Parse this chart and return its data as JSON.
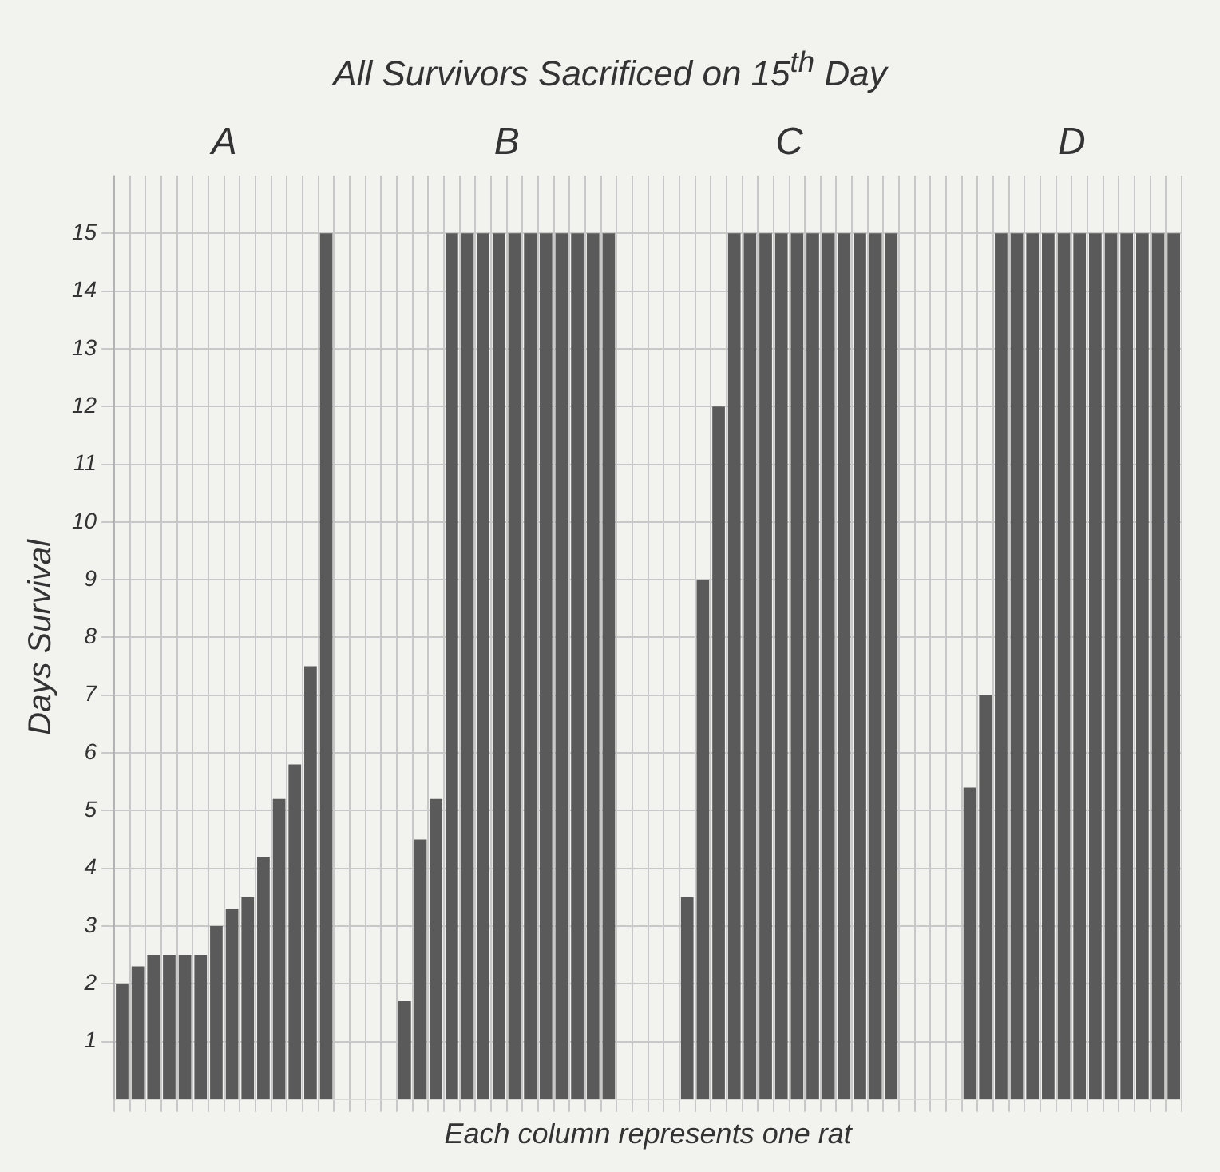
{
  "chart_data": {
    "type": "bar",
    "title": "All Survivors Sacrificed on 15$^{th}$ Day",
    "xlabel": "Each column represents one rat",
    "ylabel": "Days Survival",
    "annotations": [
      "A",
      "B",
      "C",
      "D"
    ],
    "categories": [
      null,
      null,
      null,
      null,
      null,
      null,
      null,
      null,
      null,
      null,
      null,
      null,
      null,
      null,
      null,
      null,
      null,
      null,
      null,
      null,
      null,
      null,
      null,
      null,
      null,
      null,
      null,
      null,
      null,
      null,
      null,
      null,
      null,
      null,
      null,
      null,
      null,
      null,
      null,
      null,
      null,
      null,
      null,
      null,
      null,
      null,
      null,
      null,
      null,
      null,
      null,
      null,
      null,
      null,
      null,
      null,
      null,
      null,
      null,
      null,
      null,
      null,
      null,
      null,
      null,
      null,
      null,
      null
    ],
    "values": [
      2,
      2.3,
      2.5,
      2.5,
      2.5,
      2.5,
      3,
      3.3,
      3.5,
      4.2,
      5.2,
      5.8,
      7.5,
      15,
      null,
      null,
      null,
      null,
      1.7,
      4.5,
      5.2,
      15,
      15,
      15,
      15,
      15,
      15,
      15,
      15,
      15,
      15,
      15,
      null,
      null,
      null,
      null,
      3.5,
      9,
      12,
      15,
      15,
      15,
      15,
      15,
      15,
      15,
      15,
      15,
      15,
      15,
      null,
      null,
      null,
      null,
      5.4,
      7,
      15,
      15,
      15,
      15,
      15,
      15,
      15,
      15,
      15,
      15,
      15,
      15
    ],
    "color": "#5a5a5a",
    "ylim": [
      0,
      16
    ],
    "yticks": [
      1,
      2,
      3,
      4,
      5,
      6,
      7,
      8,
      9,
      10,
      11,
      12,
      13,
      14,
      15
    ],
    "grid": true,
    "legend": false
  }
}
